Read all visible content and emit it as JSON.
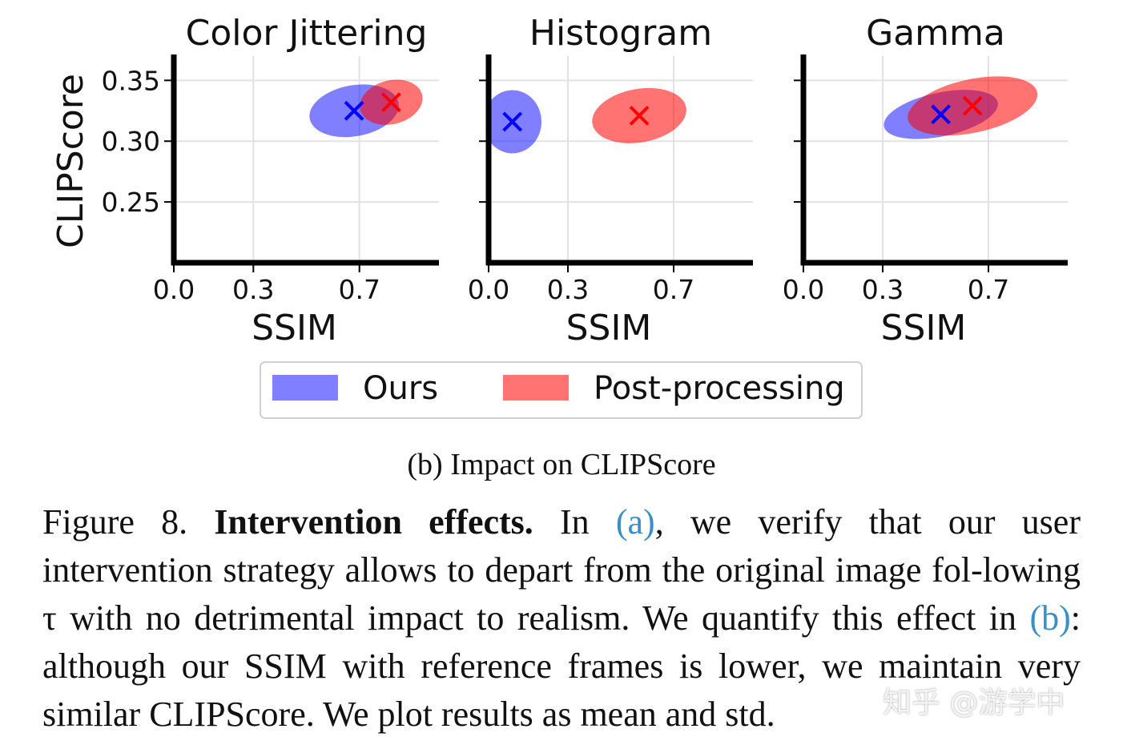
{
  "chart_data": [
    {
      "type": "scatter",
      "title": "Color Jittering",
      "xlabel": "SSIM",
      "ylabel": "CLIPScore",
      "xticks": [
        "0.0",
        "0.3",
        "0.7"
      ],
      "yticks": [
        "0.25",
        "0.30",
        "0.35"
      ],
      "xlim": [
        0.0,
        1.0
      ],
      "ylim": [
        0.2,
        0.37
      ],
      "grid": true,
      "series": [
        {
          "name": "Ours",
          "color": "#0000ff",
          "x": 0.68,
          "y": 0.325,
          "std_x": 0.17,
          "std_y": 0.021,
          "tilt_deg": -10
        },
        {
          "name": "Post-processing",
          "color": "#ff0000",
          "x": 0.82,
          "y": 0.332,
          "std_x": 0.12,
          "std_y": 0.018,
          "tilt_deg": -14
        }
      ]
    },
    {
      "type": "scatter",
      "title": "Histogram",
      "xlabel": "SSIM",
      "ylabel": "",
      "xticks": [
        "0.0",
        "0.3",
        "0.7"
      ],
      "yticks": [],
      "xlim": [
        0.0,
        1.0
      ],
      "ylim": [
        0.2,
        0.37
      ],
      "grid": true,
      "series": [
        {
          "name": "Ours",
          "color": "#0000ff",
          "x": 0.09,
          "y": 0.316,
          "std_x": 0.11,
          "std_y": 0.026,
          "tilt_deg": 0
        },
        {
          "name": "Post-processing",
          "color": "#ff0000",
          "x": 0.57,
          "y": 0.321,
          "std_x": 0.18,
          "std_y": 0.022,
          "tilt_deg": -10
        }
      ]
    },
    {
      "type": "scatter",
      "title": "Gamma",
      "xlabel": "SSIM",
      "ylabel": "",
      "xticks": [
        "0.0",
        "0.3",
        "0.7"
      ],
      "yticks": [],
      "xlim": [
        0.0,
        1.0
      ],
      "ylim": [
        0.2,
        0.37
      ],
      "grid": true,
      "series": [
        {
          "name": "Ours",
          "color": "#0000ff",
          "x": 0.52,
          "y": 0.322,
          "std_x": 0.22,
          "std_y": 0.018,
          "tilt_deg": -12
        },
        {
          "name": "Post-processing",
          "color": "#ff0000",
          "x": 0.64,
          "y": 0.329,
          "std_x": 0.25,
          "std_y": 0.022,
          "tilt_deg": -12
        }
      ]
    }
  ],
  "legend": {
    "placement": "bottom-center",
    "items": [
      {
        "label": "Ours",
        "color": "#0000ff"
      },
      {
        "label": "Post-processing",
        "color": "#ff0000"
      }
    ]
  },
  "subcaption": "(b) Impact on CLIPScore",
  "caption": {
    "prefix": "Figure 8. ",
    "bold": "Intervention effects.",
    "t1": " In ",
    "ref_a": "(a)",
    "t2": ", we verify that our user intervention strategy allows to depart from the original image fol-lowing τ with no detrimental impact to realism. We quantify this effect in ",
    "ref_b": "(b)",
    "t3": ": although our SSIM with reference frames is lower, we maintain very similar CLIPScore. We plot results as mean and std."
  },
  "watermark": "知乎 @游学中"
}
